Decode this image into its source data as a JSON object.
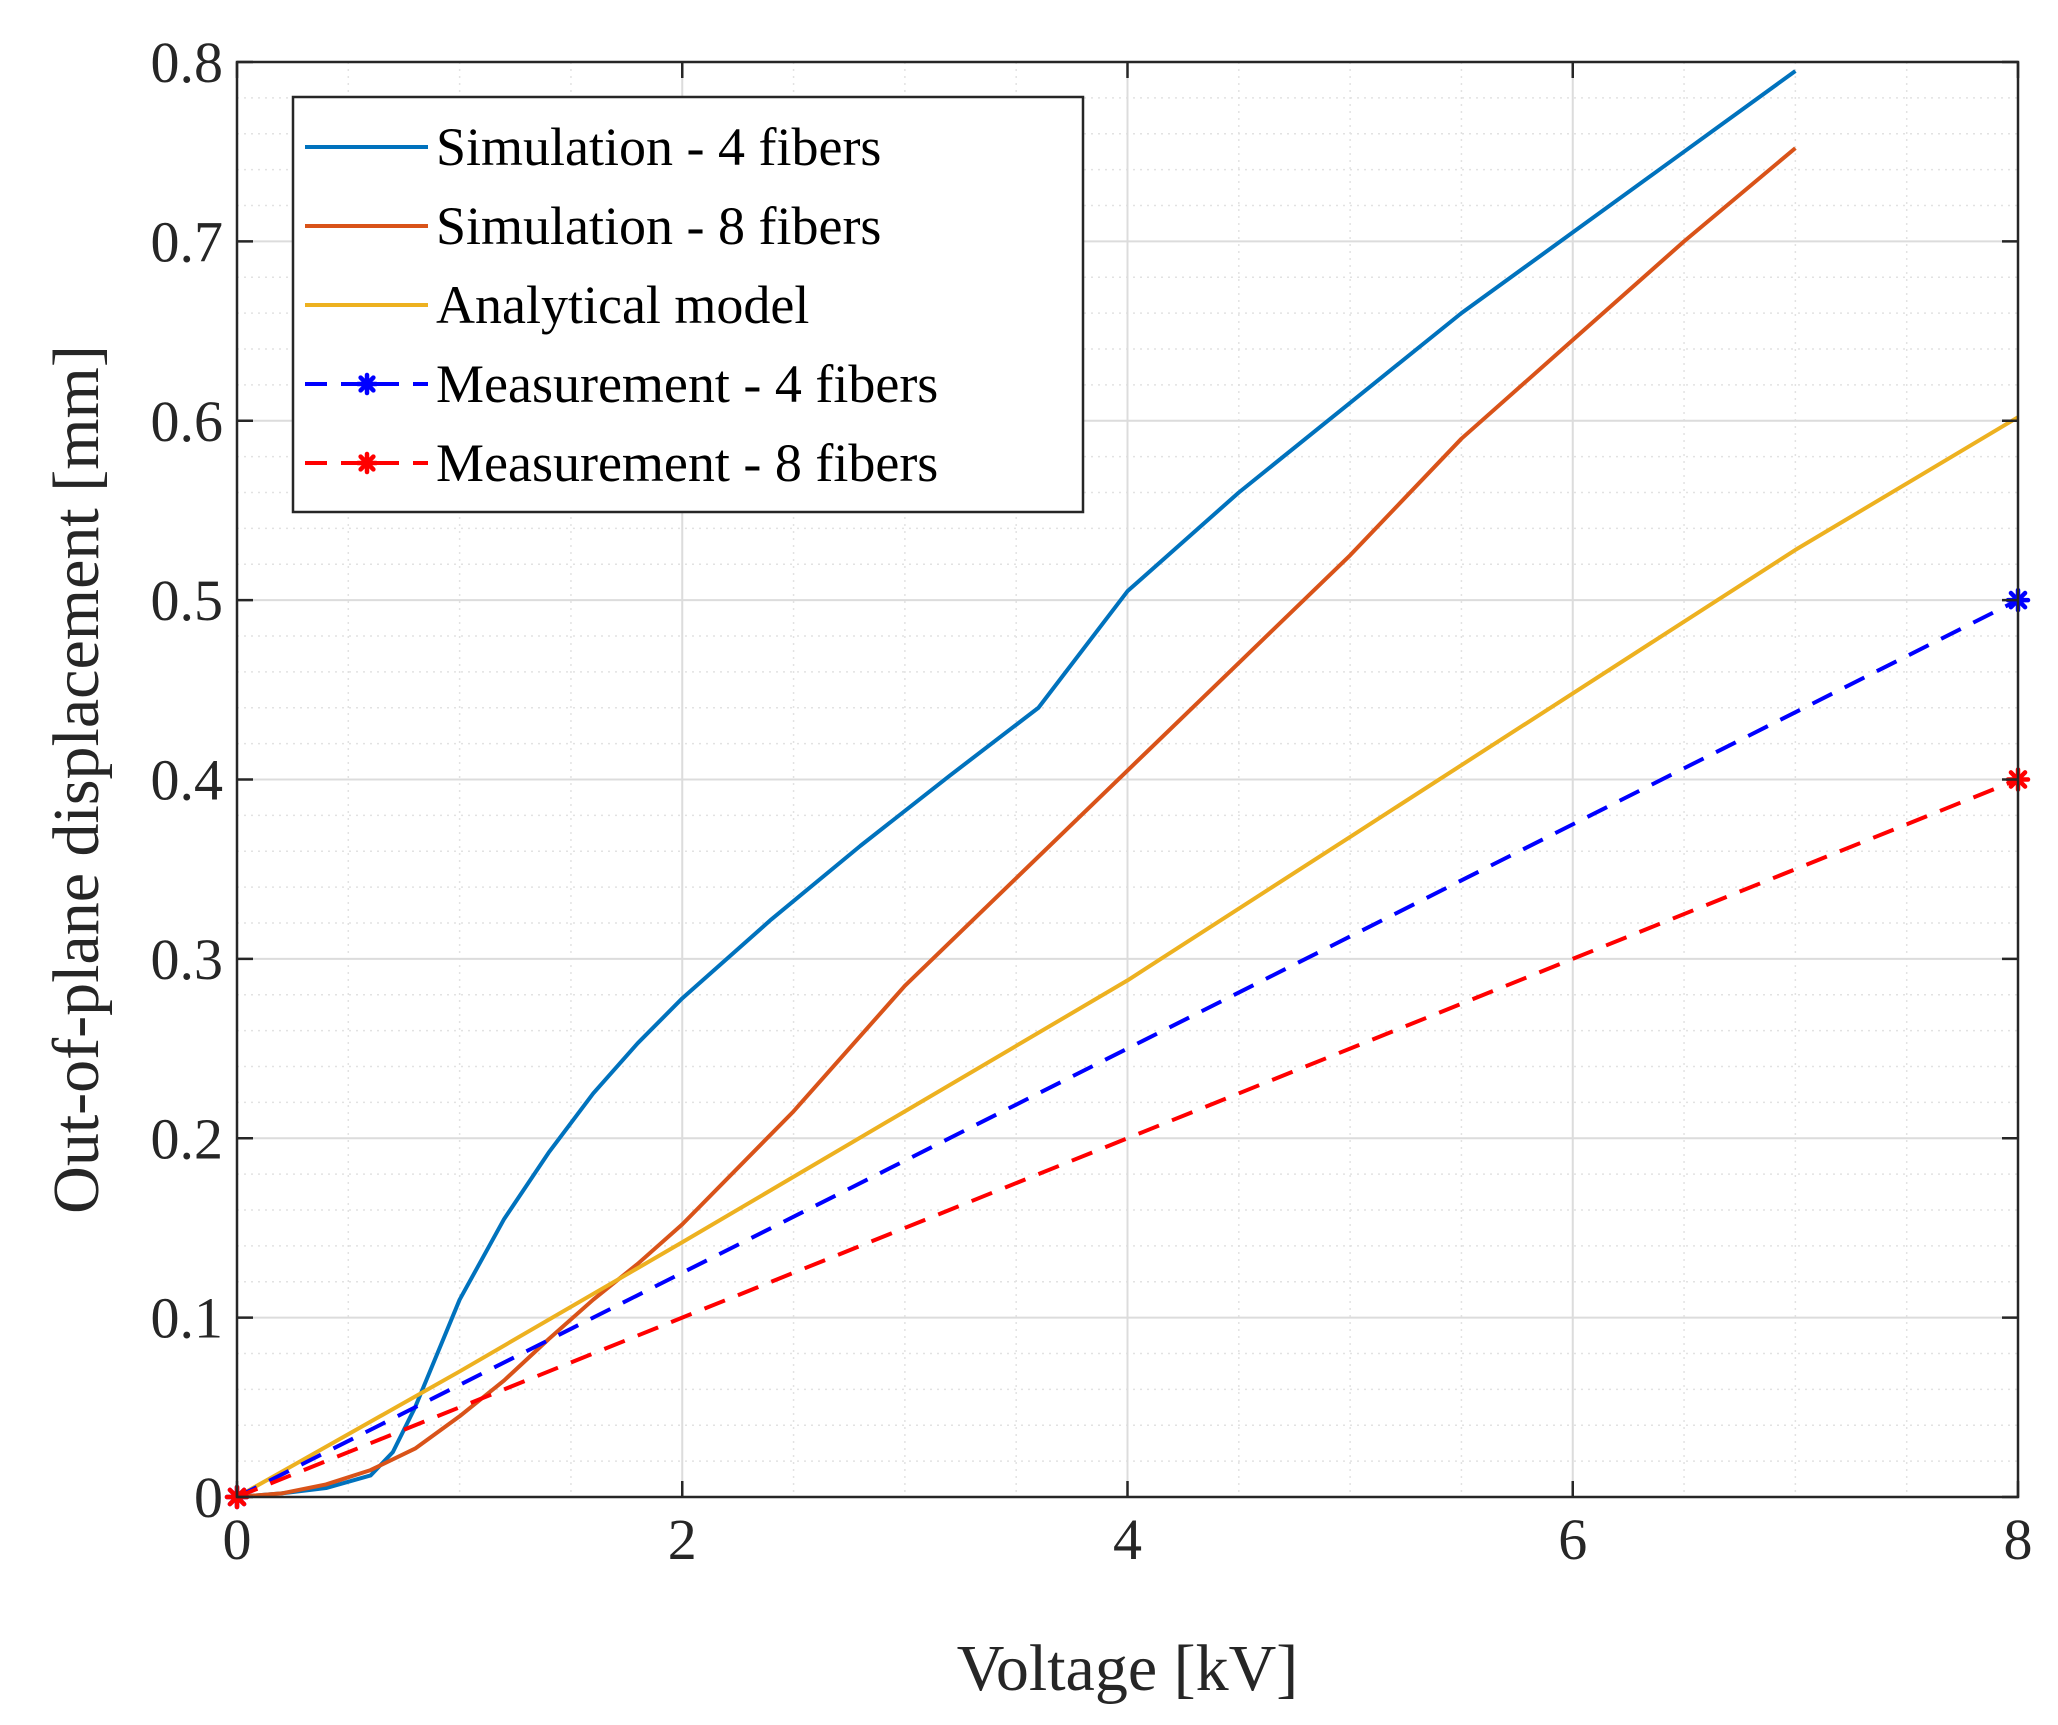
{
  "chart_data": {
    "type": "line",
    "title": "",
    "xlabel": "Voltage [kV]",
    "ylabel": "Out-of-plane displacement [mm]",
    "xlim": [
      0,
      8
    ],
    "ylim": [
      0,
      0.8
    ],
    "xticks": [
      0,
      2,
      4,
      6,
      8
    ],
    "xtick_labels": [
      "0",
      "2",
      "4",
      "6",
      "8"
    ],
    "yticks": [
      0,
      0.1,
      0.2,
      0.3,
      0.4,
      0.5,
      0.6,
      0.7,
      0.8
    ],
    "ytick_labels": [
      "0",
      "0.1",
      "0.2",
      "0.3",
      "0.4",
      "0.5",
      "0.6",
      "0.7",
      "0.8"
    ],
    "grid": true,
    "minor_grid": true,
    "legend_position": "top-left",
    "series": [
      {
        "name": "Simulation - 4 fibers",
        "color": "#0072BD",
        "style": "solid",
        "marker": "none",
        "x": [
          0,
          0.2,
          0.4,
          0.6,
          0.7,
          0.8,
          0.9,
          1.0,
          1.2,
          1.4,
          1.6,
          1.8,
          2.0,
          2.4,
          2.8,
          3.2,
          3.6,
          4.0,
          4.5,
          5.0,
          5.5,
          6.0,
          6.5,
          7.0
        ],
        "y": [
          0,
          0.002,
          0.005,
          0.012,
          0.025,
          0.05,
          0.08,
          0.11,
          0.155,
          0.192,
          0.225,
          0.253,
          0.278,
          0.322,
          0.363,
          0.402,
          0.44,
          0.505,
          0.56,
          0.61,
          0.66,
          0.705,
          0.75,
          0.795
        ]
      },
      {
        "name": "Simulation - 8 fibers",
        "color": "#D95319",
        "style": "solid",
        "marker": "none",
        "x": [
          0,
          0.2,
          0.4,
          0.6,
          0.8,
          1.0,
          1.2,
          1.4,
          1.6,
          1.8,
          2.0,
          2.5,
          3.0,
          3.5,
          4.0,
          4.5,
          5.0,
          5.5,
          6.0,
          6.5,
          7.0
        ],
        "y": [
          0,
          0.002,
          0.007,
          0.015,
          0.027,
          0.045,
          0.065,
          0.088,
          0.11,
          0.13,
          0.152,
          0.215,
          0.285,
          0.345,
          0.405,
          0.465,
          0.525,
          0.59,
          0.645,
          0.7,
          0.752
        ]
      },
      {
        "name": "Analytical model",
        "color": "#EDB120",
        "style": "solid",
        "marker": "none",
        "x": [
          0,
          1,
          2,
          3,
          4,
          5,
          6,
          7,
          8
        ],
        "y": [
          0,
          0.07,
          0.142,
          0.215,
          0.288,
          0.368,
          0.448,
          0.528,
          0.602
        ]
      },
      {
        "name": "Measurement - 4 fibers",
        "color": "#0000FF",
        "style": "dashed",
        "marker": "asterisk",
        "x": [
          0,
          8
        ],
        "y": [
          0,
          0.5
        ]
      },
      {
        "name": "Measurement - 8 fibers",
        "color": "#FF0000",
        "style": "dashed",
        "marker": "asterisk",
        "x": [
          0,
          8
        ],
        "y": [
          0,
          0.4
        ]
      }
    ]
  }
}
